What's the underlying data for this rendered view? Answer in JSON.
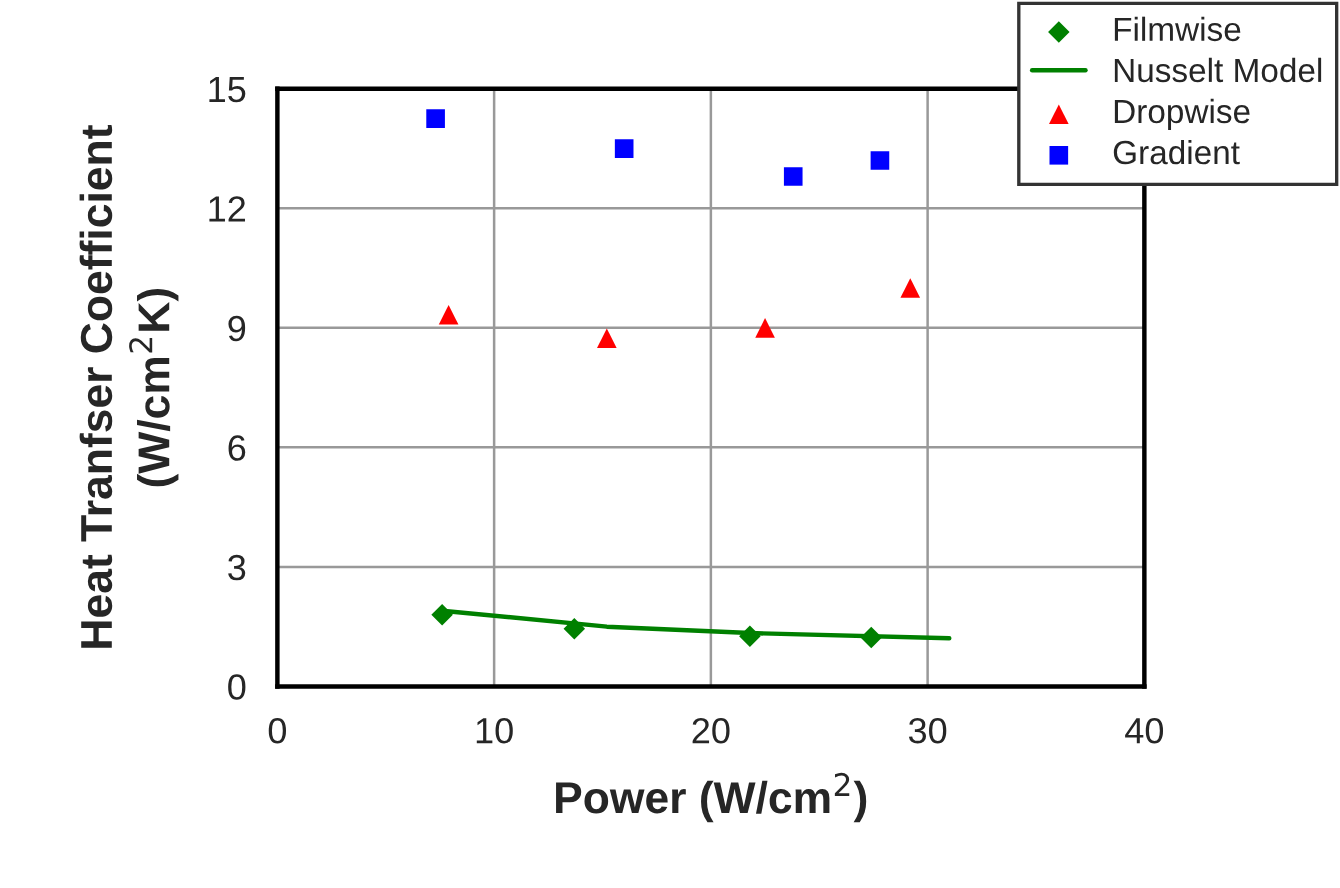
{
  "chart_data": {
    "type": "scatter",
    "xlabel": "Power (W/cm$^{2}$)",
    "ylabel": "Heat Tranfser Coefficient\n(W/cm$^{2}$K)",
    "xlim": [
      0,
      40
    ],
    "xticks": [
      0,
      10,
      20,
      30,
      40
    ],
    "ylim": [
      0,
      15
    ],
    "yticks": [
      0,
      3,
      6,
      9,
      12,
      15
    ],
    "grid": true,
    "legend": "top right",
    "series": [
      {
        "name": "Filmwise",
        "marker": "diamond",
        "color": "#008000",
        "x": [
          7.6,
          13.7,
          21.8,
          27.4
        ],
        "values": [
          1.8,
          1.45,
          1.26,
          1.23
        ]
      },
      {
        "name": "Nusselt Model",
        "type": "line",
        "marker": "none",
        "line_style": "solid",
        "color": "#008000",
        "x": [
          7.6,
          15.2,
          21.8,
          31.0
        ],
        "values": [
          1.9,
          1.5,
          1.34,
          1.21
        ]
      },
      {
        "name": "Dropwise",
        "marker": "triangle",
        "color": "#ff0000",
        "x": [
          7.9,
          15.2,
          22.5,
          29.2
        ],
        "values": [
          9.33,
          8.74,
          9.0,
          10.0
        ]
      },
      {
        "name": "Gradient",
        "marker": "square",
        "color": "#0000ff",
        "x": [
          7.3,
          16.0,
          23.8,
          27.8
        ],
        "values": [
          14.25,
          13.5,
          12.8,
          13.2
        ]
      }
    ]
  }
}
